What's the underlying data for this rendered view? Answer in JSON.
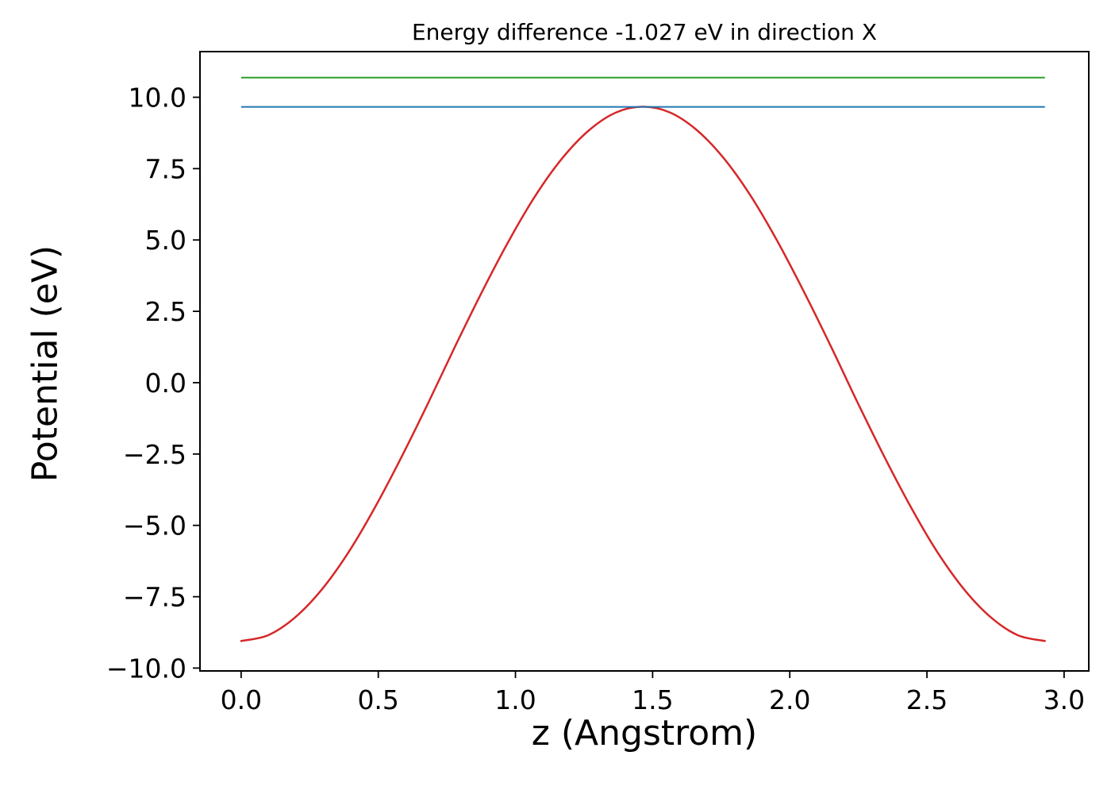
{
  "figure": {
    "background": "#ffffff",
    "text_color": "#000000"
  },
  "chart_data": {
    "type": "line",
    "title": "Energy difference -1.027 eV in direction X",
    "xlabel": "z (Angstrom)",
    "ylabel": "Potential (eV)",
    "xlim": [
      -0.15,
      3.09
    ],
    "ylim": [
      -10.1,
      11.6
    ],
    "grid": false,
    "legend": "none",
    "xtick_values": [
      0.0,
      0.5,
      1.0,
      1.5,
      2.0,
      2.5,
      3.0
    ],
    "xtick_labels": [
      "0.0",
      "0.5",
      "1.0",
      "1.5",
      "2.0",
      "2.5",
      "3.0"
    ],
    "ytick_values": [
      -10.0,
      -7.5,
      -5.0,
      -2.5,
      0.0,
      2.5,
      5.0,
      7.5,
      10.0
    ],
    "ytick_labels": [
      "−10.0",
      "−7.5",
      "−5.0",
      "−2.5",
      "0.0",
      "2.5",
      "5.0",
      "7.5",
      "10.0"
    ],
    "series": [
      {
        "name": "potential-curve",
        "kind": "curve",
        "color": "#d62728",
        "x": [
          0.0,
          0.098,
          0.195,
          0.293,
          0.391,
          0.488,
          0.586,
          0.684,
          0.781,
          0.879,
          0.977,
          1.074,
          1.172,
          1.27,
          1.367,
          1.465,
          1.563,
          1.66,
          1.758,
          1.856,
          1.953,
          2.051,
          2.149,
          2.246,
          2.344,
          2.442,
          2.539,
          2.637,
          2.735,
          2.832,
          2.93
        ],
        "y": [
          -9.05,
          -8.85,
          -8.24,
          -7.26,
          -5.95,
          -4.37,
          -2.58,
          -0.67,
          1.29,
          3.2,
          4.99,
          6.57,
          7.88,
          8.86,
          9.47,
          9.67,
          9.47,
          8.86,
          7.88,
          6.57,
          4.99,
          3.2,
          1.29,
          -0.67,
          -2.58,
          -4.37,
          -5.95,
          -7.26,
          -8.24,
          -8.85,
          -9.05
        ]
      },
      {
        "name": "upper-energy-level-line",
        "kind": "hline",
        "color": "#2ca02c",
        "y": 10.69,
        "x_start": 0.0,
        "x_end": 2.93
      },
      {
        "name": "lower-energy-level-line",
        "kind": "hline",
        "color": "#1f77b4",
        "y": 9.663,
        "x_start": 0.0,
        "x_end": 2.93
      }
    ],
    "energy_difference_eV": -1.027,
    "direction": "X"
  }
}
